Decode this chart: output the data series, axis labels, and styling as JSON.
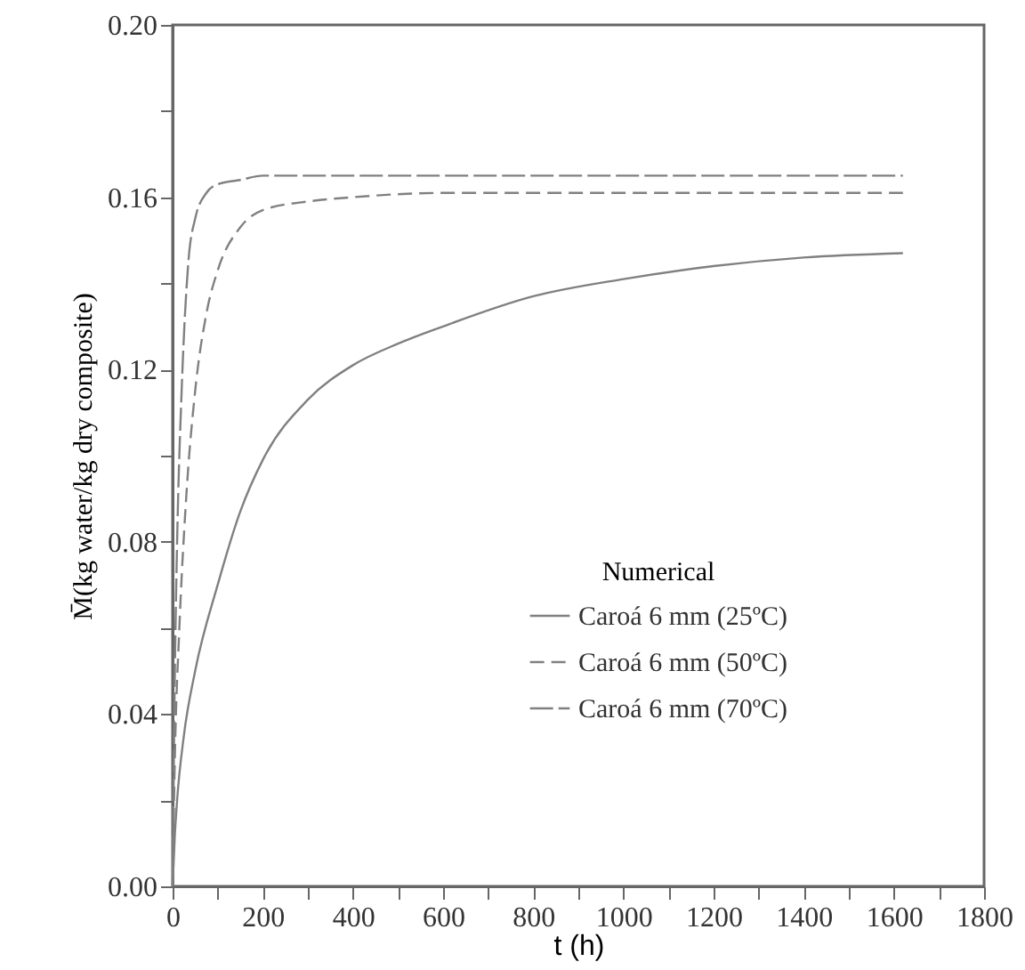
{
  "chart_data": {
    "type": "line",
    "xlabel": "t (h)",
    "ylabel": "M̄(kg water/kg dry composite)",
    "legend_title": "Numerical",
    "legend": "right",
    "xlim": [
      0,
      1800
    ],
    "xticks": [
      0,
      {
        "value": 100,
        "label": null
      },
      200,
      {
        "value": 300,
        "label": null
      },
      400,
      {
        "value": 500,
        "label": null
      },
      600,
      {
        "value": 700,
        "label": null
      },
      800,
      {
        "value": 900,
        "label": null
      },
      1000,
      {
        "value": 1100,
        "label": null
      },
      1200,
      {
        "value": 1300,
        "label": null
      },
      1400,
      {
        "value": 1500,
        "label": null
      },
      1600,
      {
        "value": 1700,
        "label": null
      },
      1800
    ],
    "ylim": [
      0,
      0.2
    ],
    "yticks": [
      {
        "value": 0,
        "label": "0.00"
      },
      {
        "value": 0.02,
        "label": null
      },
      {
        "value": 0.04,
        "label": "0.04"
      },
      {
        "value": 0.06,
        "label": null
      },
      {
        "value": 0.08,
        "label": "0.08"
      },
      {
        "value": 0.1,
        "label": null
      },
      {
        "value": 0.12,
        "label": "0.12"
      },
      {
        "value": 0.14,
        "label": null
      },
      {
        "value": 0.16,
        "label": "0.16"
      },
      {
        "value": 0.18,
        "label": null
      },
      {
        "value": 0.2,
        "label": "0.20"
      }
    ],
    "grid": false,
    "marker": "none",
    "series": [
      {
        "name": "Caroá 6 mm (25ºC)",
        "color": "#808080",
        "line_style": "solid",
        "x": [
          0,
          5,
          10,
          25,
          50,
          100,
          150,
          200,
          300,
          400,
          500,
          600,
          800,
          1000,
          1200,
          1400,
          1620
        ],
        "values": [
          0,
          0.012,
          0.02,
          0.035,
          0.05,
          0.07,
          0.087,
          0.099,
          0.113,
          0.121,
          0.126,
          0.13,
          0.137,
          0.141,
          0.144,
          0.146,
          0.147
        ]
      },
      {
        "name": "Caroá 6 mm (50ºC)",
        "color": "#808080",
        "line_style": "dashed",
        "x": [
          0,
          5,
          15,
          30,
          50,
          75,
          100,
          150,
          200,
          300,
          400,
          600,
          1000,
          1620
        ],
        "values": [
          0,
          0.03,
          0.06,
          0.09,
          0.115,
          0.133,
          0.143,
          0.153,
          0.157,
          0.159,
          0.16,
          0.161,
          0.161,
          0.161
        ]
      },
      {
        "name": "Caroá 6 mm (70ºC)",
        "color": "#808080",
        "line_style": "dashed",
        "x": [
          0,
          5,
          10,
          20,
          35,
          50,
          75,
          100,
          150,
          200,
          400,
          1000,
          1620
        ],
        "values": [
          0,
          0.05,
          0.08,
          0.115,
          0.145,
          0.155,
          0.161,
          0.163,
          0.164,
          0.165,
          0.165,
          0.165,
          0.165
        ]
      }
    ]
  }
}
